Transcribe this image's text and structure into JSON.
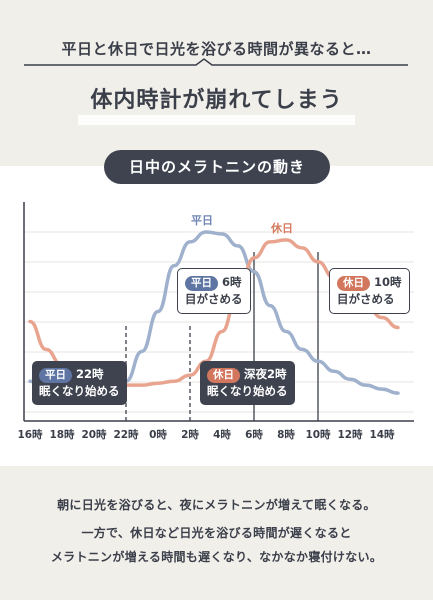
{
  "heading": {
    "subtitle": "平日と休日で日光を浴びる時間が異なると…",
    "title": "体内時計が崩れてしまう"
  },
  "section_pill": "日中のメラトニンの動き",
  "callouts": {
    "weekday_sleep": {
      "tag": "平日",
      "time": "22時",
      "text": "眠くなり始める"
    },
    "holiday_sleep": {
      "tag": "休日",
      "time": "深夜2時",
      "text": "眠くなり始める"
    },
    "weekday_wake": {
      "tag": "平日",
      "time": "6時",
      "text": "目がさめる"
    },
    "holiday_wake": {
      "tag": "休日",
      "time": "10時",
      "text": "目がさめる"
    }
  },
  "chart_data": {
    "type": "line",
    "x": [
      "16時",
      "17時",
      "18時",
      "19時",
      "20時",
      "21時",
      "22時",
      "23時",
      "0時",
      "1時",
      "2時",
      "3時",
      "4時",
      "5時",
      "6時",
      "7時",
      "8時",
      "9時",
      "10時",
      "11時",
      "12時",
      "13時",
      "14時",
      "15時"
    ],
    "tick_labels": [
      "16時",
      "18時",
      "20時",
      "22時",
      "0時",
      "2時",
      "4時",
      "6時",
      "8時",
      "10時",
      "12時",
      "14時"
    ],
    "series": [
      {
        "name": "平日",
        "color": "#9fb1cd",
        "values": [
          20,
          17,
          15,
          14,
          14,
          15,
          20,
          35,
          55,
          78,
          90,
          95,
          94,
          88,
          75,
          58,
          45,
          36,
          30,
          25,
          21,
          18,
          16,
          14
        ]
      },
      {
        "name": "休日",
        "color": "#e8a48e",
        "values": [
          50,
          36,
          28,
          23,
          20,
          19,
          18,
          18,
          19,
          20,
          23,
          30,
          45,
          65,
          82,
          90,
          91,
          87,
          80,
          72,
          64,
          58,
          52,
          47
        ]
      }
    ],
    "vlines": [
      {
        "at": "22時",
        "style": "dashed"
      },
      {
        "at": "2時",
        "style": "dashed"
      },
      {
        "at": "6時",
        "style": "solid"
      },
      {
        "at": "10時",
        "style": "solid"
      }
    ],
    "xlabel": "",
    "ylabel": "",
    "ylim": [
      0,
      100
    ],
    "grid": true,
    "legend": "inline-labels-top"
  },
  "bottom": {
    "line1": "朝に日光を浴びると、夜にメラトニンが増えて眠くなる。",
    "line2": "一方で、休日など日光を浴びる時間が遅くなると",
    "line3": "メラトニンが増える時間も遅くなり、なかなか寝付けない。"
  }
}
